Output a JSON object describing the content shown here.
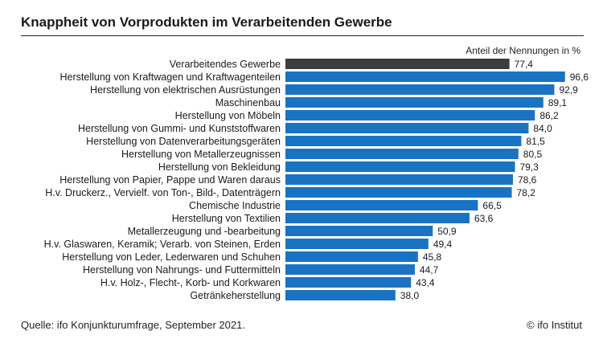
{
  "title": "Knappheit von Vorprodukten im Verarbeitenden Gewerbe",
  "unit_label": "Anteil der Nennungen in %",
  "source": "Quelle: ifo Konjunkturumfrage, September 2021.",
  "copyright": "© ifo Institut",
  "colors": {
    "highlight": "#3d3d3f",
    "bar": "#1a73c2"
  },
  "chart_data": {
    "type": "bar",
    "orientation": "horizontal",
    "title": "Knappheit von Vorprodukten im Verarbeitenden Gewerbe",
    "xlabel": "Anteil der Nennungen in %",
    "ylabel": "",
    "xlim": [
      0,
      100
    ],
    "grid": false,
    "categories": [
      "Verarbeitendes Gewerbe",
      "Herstellung von Kraftwagen und Kraftwagenteilen",
      "Herstellung von elektrischen Ausrüstungen",
      "Maschinenbau",
      "Herstellung von Möbeln",
      "Herstellung von Gummi- und Kunststoffwaren",
      "Herstellung von Datenverarbeitungsgeräten",
      "Herstellung von Metallerzeugnissen",
      "Herstellung von Bekleidung",
      "Herstellung von Papier, Pappe und Waren daraus",
      "H.v. Druckerz., Vervielf. von Ton-, Bild-, Datenträgern",
      "Chemische Industrie",
      "Herstellung von Textilien",
      "Metallerzeugung und -bearbeitung",
      "H.v. Glaswaren, Keramik; Verarb. von Steinen, Erden",
      "Herstellung von Leder, Lederwaren und Schuhen",
      "Herstellung von Nahrungs- und Futtermitteln",
      "H.v. Holz-, Flecht-, Korb- und Korkwaren",
      "Getränkeherstellung"
    ],
    "values": [
      77.4,
      96.6,
      92.9,
      89.1,
      86.2,
      84.0,
      81.5,
      80.5,
      79.3,
      78.6,
      78.2,
      66.5,
      63.6,
      50.9,
      49.4,
      45.8,
      44.7,
      43.4,
      38.0
    ],
    "value_labels": [
      "77,4",
      "96,6",
      "92,9",
      "89,1",
      "86,2",
      "84,0",
      "81,5",
      "80,5",
      "79,3",
      "78,6",
      "78,2",
      "66,5",
      "63,6",
      "50,9",
      "49,4",
      "45,8",
      "44,7",
      "43,4",
      "38,0"
    ],
    "highlight_index": 0
  }
}
